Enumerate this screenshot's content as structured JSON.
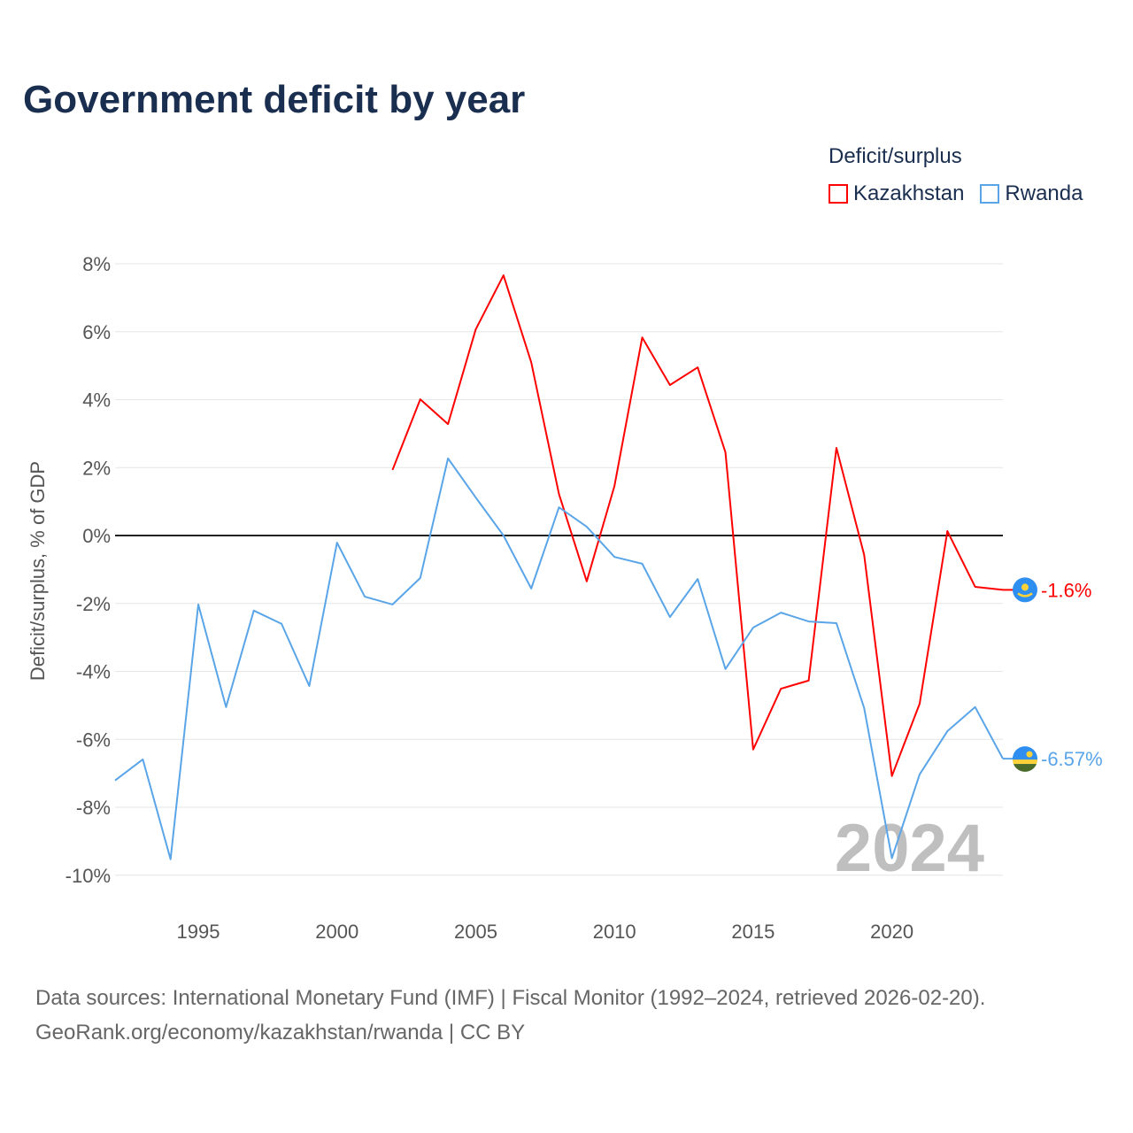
{
  "chart_data": {
    "type": "line",
    "title": "Government deficit by year",
    "ylabel": "Deficit/surplus, % of GDP",
    "xlabel": "",
    "legend_title": "Deficit/surplus",
    "legend_position": "top-right",
    "year_watermark": "2024",
    "xlim": [
      1992,
      2024
    ],
    "ylim": [
      -10,
      8
    ],
    "x_ticks": [
      1995,
      2000,
      2005,
      2010,
      2015,
      2020
    ],
    "y_ticks": [
      8,
      6,
      4,
      2,
      0,
      -2,
      -4,
      -6,
      -8,
      -10
    ],
    "y_tick_labels": [
      "8%",
      "6%",
      "4%",
      "2%",
      "0%",
      "-2%",
      "-4%",
      "-6%",
      "-8%",
      "-10%"
    ],
    "grid": true,
    "series": [
      {
        "name": "Kazakhstan",
        "color": "#ff0000",
        "end_label": "-1.6%",
        "x": [
          2002,
          2003,
          2004,
          2005,
          2006,
          2007,
          2008,
          2009,
          2010,
          2011,
          2012,
          2013,
          2014,
          2015,
          2016,
          2017,
          2018,
          2019,
          2020,
          2021,
          2022,
          2023,
          2024
        ],
        "values": [
          1.93,
          4.01,
          3.28,
          6.07,
          7.66,
          5.1,
          1.22,
          -1.35,
          1.46,
          5.83,
          4.43,
          4.95,
          2.45,
          -6.3,
          -4.51,
          -4.27,
          2.58,
          -0.57,
          -7.08,
          -4.95,
          0.13,
          -1.51,
          -1.6
        ]
      },
      {
        "name": "Rwanda",
        "color": "#5aa5e8",
        "end_label": "-6.57%",
        "x": [
          1992,
          1993,
          1994,
          1995,
          1996,
          1997,
          1998,
          1999,
          2000,
          2001,
          2002,
          2003,
          2004,
          2005,
          2006,
          2007,
          2008,
          2009,
          2010,
          2011,
          2012,
          2013,
          2014,
          2015,
          2016,
          2017,
          2018,
          2019,
          2020,
          2021,
          2022,
          2023,
          2024
        ],
        "values": [
          -7.21,
          -6.59,
          -9.53,
          -2.03,
          -5.05,
          -2.21,
          -2.6,
          -4.43,
          -0.21,
          -1.8,
          -2.03,
          -1.25,
          2.27,
          1.12,
          0.0,
          -1.56,
          0.83,
          0.26,
          -0.63,
          -0.83,
          -2.4,
          -1.28,
          -3.93,
          -2.71,
          -2.27,
          -2.53,
          -2.58,
          -5.08,
          -9.5,
          -7.03,
          -5.76,
          -5.05,
          -6.57
        ]
      }
    ]
  },
  "footer": {
    "line1": "Data sources: International Monetary Fund (IMF) | Fiscal Monitor (1992–2024, retrieved 2026-02-20).",
    "line2": "GeoRank.org/economy/kazakhstan/rwanda | CC BY"
  }
}
